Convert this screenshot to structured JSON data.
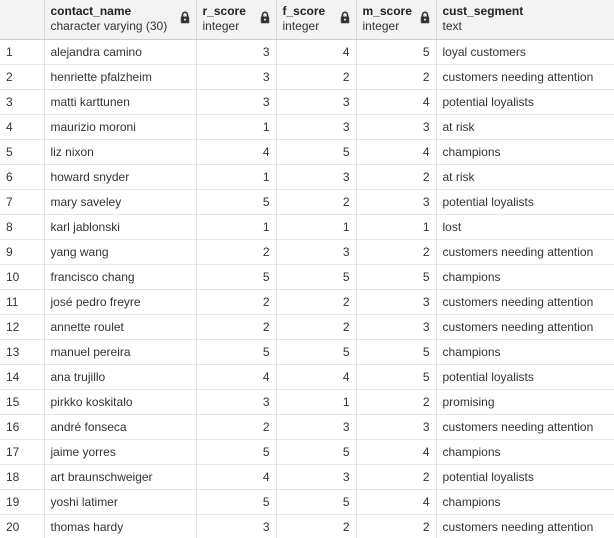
{
  "columns": [
    {
      "name": "contact_name",
      "type": "character varying (30)"
    },
    {
      "name": "r_score",
      "type": "integer"
    },
    {
      "name": "f_score",
      "type": "integer"
    },
    {
      "name": "m_score",
      "type": "integer"
    },
    {
      "name": "cust_segment",
      "type": "text"
    }
  ],
  "rows": [
    {
      "n": "1",
      "contact_name": "alejandra camino",
      "r": "3",
      "f": "4",
      "m": "5",
      "seg": "loyal customers"
    },
    {
      "n": "2",
      "contact_name": "henriette pfalzheim",
      "r": "3",
      "f": "2",
      "m": "2",
      "seg": "customers needing attention"
    },
    {
      "n": "3",
      "contact_name": "matti karttunen",
      "r": "3",
      "f": "3",
      "m": "4",
      "seg": "potential loyalists"
    },
    {
      "n": "4",
      "contact_name": "maurizio moroni",
      "r": "1",
      "f": "3",
      "m": "3",
      "seg": "at risk"
    },
    {
      "n": "5",
      "contact_name": "liz nixon",
      "r": "4",
      "f": "5",
      "m": "4",
      "seg": "champions"
    },
    {
      "n": "6",
      "contact_name": "howard snyder",
      "r": "1",
      "f": "3",
      "m": "2",
      "seg": "at risk"
    },
    {
      "n": "7",
      "contact_name": "mary saveley",
      "r": "5",
      "f": "2",
      "m": "3",
      "seg": "potential loyalists"
    },
    {
      "n": "8",
      "contact_name": "karl jablonski",
      "r": "1",
      "f": "1",
      "m": "1",
      "seg": "lost"
    },
    {
      "n": "9",
      "contact_name": "yang wang",
      "r": "2",
      "f": "3",
      "m": "2",
      "seg": "customers needing attention"
    },
    {
      "n": "10",
      "contact_name": "francisco chang",
      "r": "5",
      "f": "5",
      "m": "5",
      "seg": "champions"
    },
    {
      "n": "11",
      "contact_name": "josé pedro freyre",
      "r": "2",
      "f": "2",
      "m": "3",
      "seg": "customers needing attention"
    },
    {
      "n": "12",
      "contact_name": "annette roulet",
      "r": "2",
      "f": "2",
      "m": "3",
      "seg": "customers needing attention"
    },
    {
      "n": "13",
      "contact_name": "manuel pereira",
      "r": "5",
      "f": "5",
      "m": "5",
      "seg": "champions"
    },
    {
      "n": "14",
      "contact_name": "ana trujillo",
      "r": "4",
      "f": "4",
      "m": "5",
      "seg": "potential loyalists"
    },
    {
      "n": "15",
      "contact_name": "pirkko koskitalo",
      "r": "3",
      "f": "1",
      "m": "2",
      "seg": "promising"
    },
    {
      "n": "16",
      "contact_name": "andré fonseca",
      "r": "2",
      "f": "3",
      "m": "3",
      "seg": "customers needing attention"
    },
    {
      "n": "17",
      "contact_name": "jaime yorres",
      "r": "5",
      "f": "5",
      "m": "4",
      "seg": "champions"
    },
    {
      "n": "18",
      "contact_name": "art braunschweiger",
      "r": "4",
      "f": "3",
      "m": "2",
      "seg": "potential loyalists"
    },
    {
      "n": "19",
      "contact_name": "yoshi latimer",
      "r": "5",
      "f": "5",
      "m": "4",
      "seg": "champions"
    },
    {
      "n": "20",
      "contact_name": "thomas hardy",
      "r": "3",
      "f": "2",
      "m": "2",
      "seg": "customers needing attention"
    }
  ],
  "icons": {
    "column_lock": "lock-icon"
  }
}
